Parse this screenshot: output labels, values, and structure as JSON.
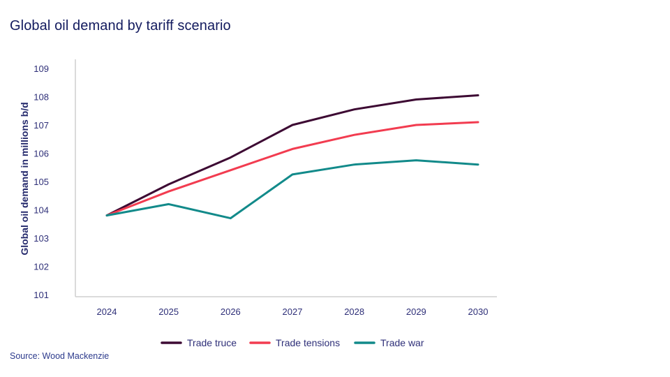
{
  "title": "Global oil demand by tariff scenario",
  "source": "Source: Wood Mackenzie",
  "chart_data": {
    "type": "line",
    "title": "Global oil demand by tariff scenario",
    "xlabel": "",
    "ylabel": "Global oil demand in millions b/d",
    "x": [
      "2024",
      "2025",
      "2026",
      "2027",
      "2028",
      "2029",
      "2030"
    ],
    "ylim": [
      101,
      109
    ],
    "yticks": [
      "101",
      "102",
      "103",
      "104",
      "105",
      "106",
      "107",
      "108",
      "109"
    ],
    "grid": false,
    "legend_position": "bottom",
    "series": [
      {
        "name": "Trade truce",
        "color": "#3d0a33",
        "values": [
          103.8,
          104.9,
          105.85,
          107.0,
          107.55,
          107.9,
          108.05
        ]
      },
      {
        "name": "Trade tensions",
        "color": "#f23c50",
        "values": [
          103.8,
          104.65,
          105.4,
          106.15,
          106.65,
          107.0,
          107.1
        ]
      },
      {
        "name": "Trade war",
        "color": "#128a8a",
        "values": [
          103.8,
          104.2,
          103.7,
          105.25,
          105.6,
          105.75,
          105.6
        ]
      }
    ]
  }
}
